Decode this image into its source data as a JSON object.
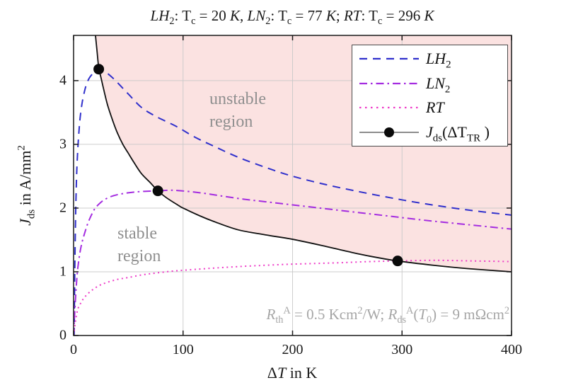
{
  "figure": {
    "title": "*LH*_{2}: T_{c} = 20 *K*, *LN*_{2}: T_{c} = 77 *K*; *RT*: T_{c} = 296 *K*",
    "annotation": "*R*_{th}^{A} = 0.5 Kcm^{2}/W; *R*_{ds}^{A}(*T*_{0}) = 9 mΩcm^{2}",
    "region_labels": {
      "unstable": "unstable region",
      "stable": "stable region"
    }
  },
  "chart_data": {
    "type": "line",
    "title": "*LH*_{2}: T_{c} = 20 *K*, *LN*_{2}: T_{c} = 77 *K*; *RT*: T_{c} = 296 *K*",
    "xlabel": "Δ*T* in K",
    "ylabel": "*J*_{ds} in A/mm^{2}",
    "xlim": [
      0,
      400
    ],
    "ylim": [
      0,
      4.71
    ],
    "xticks": [
      0,
      100,
      200,
      300,
      400
    ],
    "yticks": [
      0,
      1,
      2,
      3,
      4
    ],
    "grid": true,
    "legend_position": "top-right",
    "unstable_region_fill": "#fbe2e1",
    "grid_color": "#c9c9c9",
    "series": [
      {
        "name": "lh2",
        "label": "*LH*_{2}",
        "color": "#3030cc",
        "style": "dashed",
        "points": [
          [
            0.5,
            0
          ],
          [
            1,
            0.9
          ],
          [
            1.5,
            1.5
          ],
          [
            2,
            2.0
          ],
          [
            2.5,
            2.35
          ],
          [
            3,
            2.62
          ],
          [
            4,
            2.97
          ],
          [
            5,
            3.22
          ],
          [
            6,
            3.42
          ],
          [
            8,
            3.67
          ],
          [
            11,
            3.9
          ],
          [
            14,
            4.03
          ],
          [
            18,
            4.12
          ],
          [
            21,
            4.16
          ],
          [
            24,
            4.18
          ],
          [
            28,
            4.15
          ],
          [
            34,
            4.07
          ],
          [
            40,
            3.97
          ],
          [
            50,
            3.79
          ],
          [
            62,
            3.58
          ],
          [
            75,
            3.44
          ],
          [
            94,
            3.28
          ],
          [
            110,
            3.12
          ],
          [
            127,
            2.98
          ],
          [
            150,
            2.8
          ],
          [
            175,
            2.64
          ],
          [
            200,
            2.5
          ],
          [
            230,
            2.37
          ],
          [
            260,
            2.26
          ],
          [
            290,
            2.16
          ],
          [
            320,
            2.07
          ],
          [
            360,
            1.97
          ],
          [
            400,
            1.89
          ]
        ]
      },
      {
        "name": "ln2",
        "label": "*LN*_{2}",
        "color": "#a42ce0",
        "style": "dashdot",
        "points": [
          [
            0,
            0
          ],
          [
            1,
            0.35
          ],
          [
            2,
            0.65
          ],
          [
            3,
            0.9
          ],
          [
            4,
            1.08
          ],
          [
            6,
            1.32
          ],
          [
            8,
            1.48
          ],
          [
            10,
            1.6
          ],
          [
            13,
            1.76
          ],
          [
            16,
            1.88
          ],
          [
            19,
            1.98
          ],
          [
            23,
            2.06
          ],
          [
            28,
            2.13
          ],
          [
            34,
            2.18
          ],
          [
            40,
            2.21
          ],
          [
            50,
            2.24
          ],
          [
            62,
            2.26
          ],
          [
            77,
            2.27
          ],
          [
            90,
            2.28
          ],
          [
            105,
            2.26
          ],
          [
            120,
            2.23
          ],
          [
            135,
            2.19
          ],
          [
            155,
            2.14
          ],
          [
            175,
            2.1
          ],
          [
            200,
            2.05
          ],
          [
            230,
            1.99
          ],
          [
            260,
            1.93
          ],
          [
            290,
            1.87
          ],
          [
            320,
            1.81
          ],
          [
            360,
            1.74
          ],
          [
            400,
            1.67
          ]
        ]
      },
      {
        "name": "rt",
        "label": "*RT*",
        "color": "#ee3cc8",
        "style": "dotted",
        "points": [
          [
            0,
            0
          ],
          [
            2,
            0.25
          ],
          [
            4,
            0.42
          ],
          [
            7,
            0.52
          ],
          [
            10,
            0.6
          ],
          [
            16,
            0.7
          ],
          [
            23,
            0.78
          ],
          [
            30,
            0.83
          ],
          [
            40,
            0.88
          ],
          [
            50,
            0.91
          ],
          [
            62,
            0.95
          ],
          [
            75,
            0.98
          ],
          [
            90,
            1.01
          ],
          [
            105,
            1.03
          ],
          [
            130,
            1.06
          ],
          [
            160,
            1.09
          ],
          [
            200,
            1.12
          ],
          [
            240,
            1.14
          ],
          [
            270,
            1.16
          ],
          [
            296,
            1.17
          ],
          [
            330,
            1.18
          ],
          [
            365,
            1.17
          ],
          [
            400,
            1.16
          ]
        ]
      },
      {
        "name": "jds-boundary",
        "label": "*J*_{ds}(ΔT_{TR} )",
        "color": "#111111",
        "legend_color": "#666666",
        "style": "solid",
        "marker": "filled-circle",
        "points": [
          [
            20,
            4.71
          ],
          [
            21.5,
            4.45
          ],
          [
            23,
            4.2
          ],
          [
            25,
            4.05
          ],
          [
            27,
            3.9
          ],
          [
            31,
            3.62
          ],
          [
            36,
            3.36
          ],
          [
            40,
            3.18
          ],
          [
            45,
            3.0
          ],
          [
            50,
            2.86
          ],
          [
            55,
            2.72
          ],
          [
            62,
            2.54
          ],
          [
            70,
            2.4
          ],
          [
            77,
            2.27
          ],
          [
            85,
            2.16
          ],
          [
            95,
            2.05
          ],
          [
            100,
            2.0
          ],
          [
            115,
            1.88
          ],
          [
            128,
            1.79
          ],
          [
            150,
            1.66
          ],
          [
            175,
            1.58
          ],
          [
            200,
            1.51
          ],
          [
            230,
            1.4
          ],
          [
            250,
            1.32
          ],
          [
            269,
            1.25
          ],
          [
            296,
            1.17
          ],
          [
            330,
            1.1
          ],
          [
            360,
            1.05
          ],
          [
            400,
            1.0
          ]
        ]
      }
    ],
    "transition_markers": {
      "color": "#0a0a0a",
      "points": [
        [
          23,
          4.18
        ],
        [
          77,
          2.27
        ],
        [
          296,
          1.17
        ]
      ]
    }
  }
}
